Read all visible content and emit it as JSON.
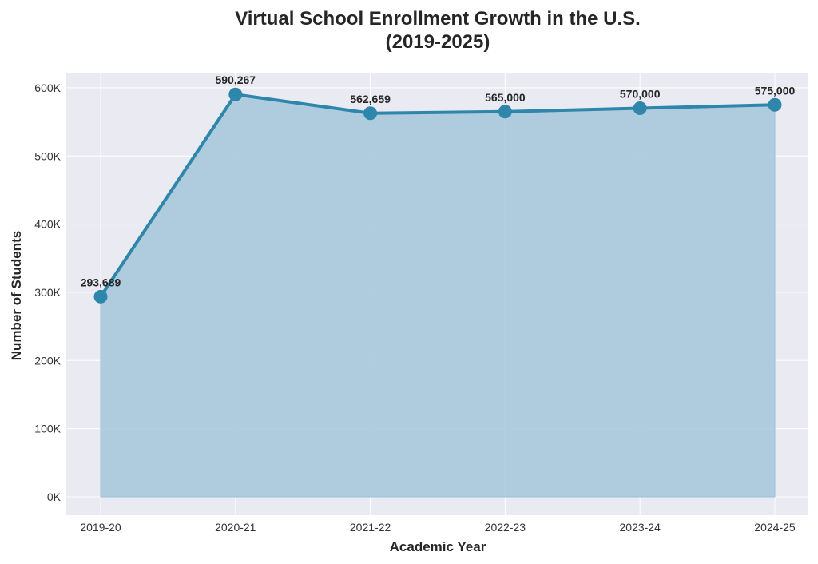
{
  "chart_data": {
    "type": "area",
    "title_line1": "Virtual School Enrollment Growth in the U.S.",
    "title_line2": "(2019-2025)",
    "xlabel": "Academic Year",
    "ylabel": "Number of Students",
    "categories": [
      "2019-20",
      "2020-21",
      "2021-22",
      "2022-23",
      "2023-24",
      "2024-25"
    ],
    "values": [
      293689,
      590267,
      562659,
      565000,
      570000,
      575000
    ],
    "data_labels": [
      "293,689",
      "590,267",
      "562,659",
      "565,000",
      "570,000",
      "575,000"
    ],
    "yticks": [
      0,
      100000,
      200000,
      300000,
      400000,
      500000,
      600000
    ],
    "ytick_labels": [
      "0K",
      "100K",
      "200K",
      "300K",
      "400K",
      "500K",
      "600K"
    ],
    "ylim": [
      -27000,
      621000
    ],
    "grid": true,
    "colors": {
      "line": "#2e86ab",
      "fill": "#a9c8dc",
      "background": "#eaeaf2",
      "grid": "#ffffff"
    }
  }
}
